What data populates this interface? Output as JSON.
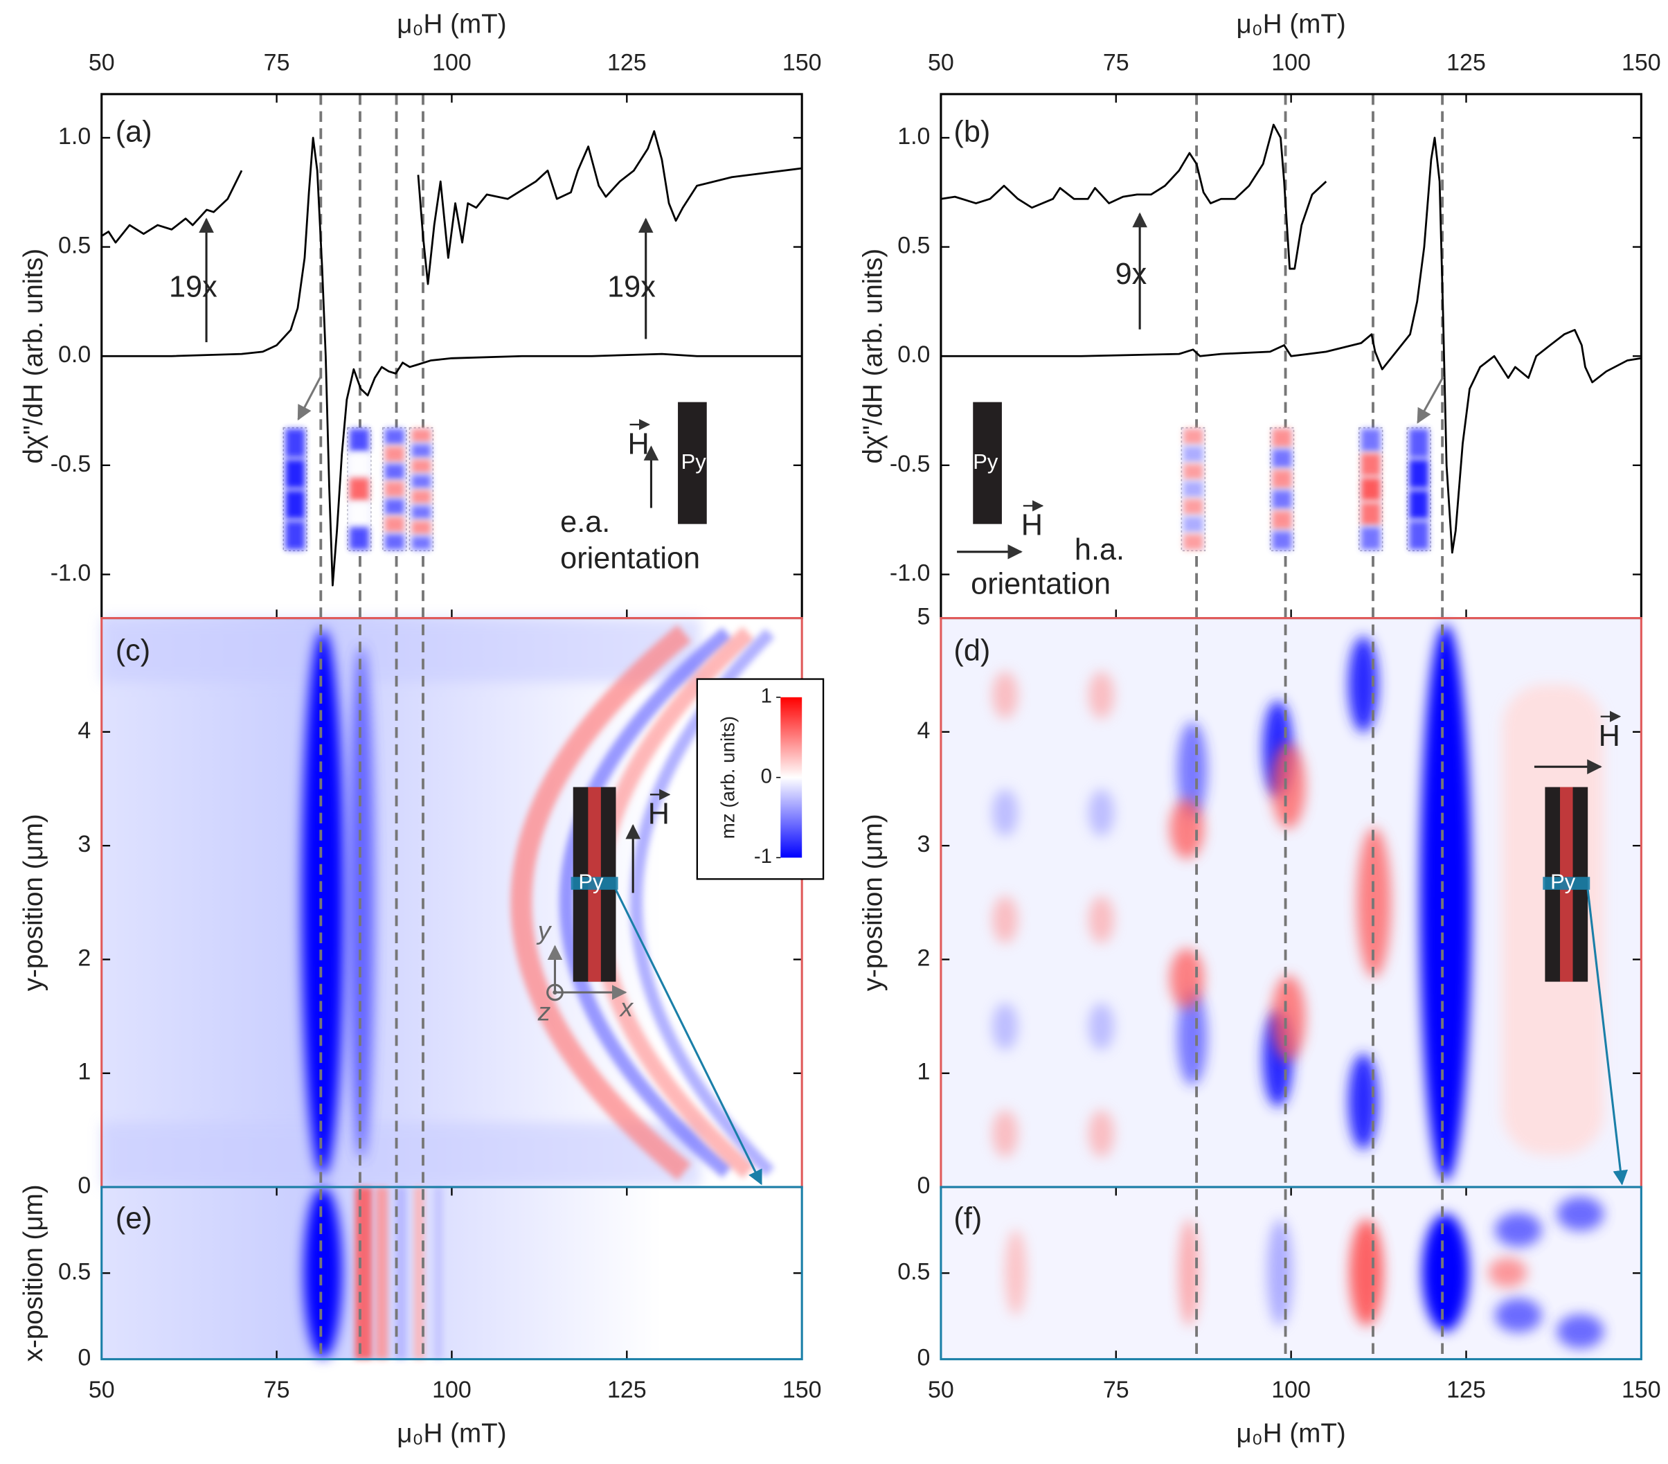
{
  "chart_data": [
    {
      "type": "line",
      "xlabel": "μ₀H (mT)",
      "ylabel": "dχ\"/dH (arb. units)",
      "xlim": [
        50,
        150
      ],
      "xticks": [
        50,
        75,
        100,
        125,
        150
      ],
      "ylim": [
        -1.2,
        1.2
      ],
      "yticks": [
        {
          "value": -1,
          "label": "-1.0"
        },
        -0.5,
        {
          "value": 0,
          "label": "0.0"
        },
        0.5,
        {
          "value": 1,
          "label": "1.0"
        }
      ],
      "markers": [
        81.3,
        86.9,
        92.1,
        95.9
      ],
      "annotations": [
        "(a)",
        "19x",
        "19x",
        "Py",
        "H",
        "e.a.",
        "orientation"
      ],
      "series": [
        {
          "color": "#000000",
          "x": [
            50,
            60,
            70,
            73,
            75,
            77,
            78,
            79,
            79.6,
            80.2,
            80.8,
            81.5,
            82,
            82.5,
            83,
            83.6,
            84.3,
            85,
            86,
            87,
            88,
            89,
            90,
            91,
            92,
            93,
            94,
            95,
            97,
            100,
            110,
            120,
            130,
            135,
            150
          ],
          "values": [
            0,
            0,
            0.01,
            0.02,
            0.05,
            0.12,
            0.22,
            0.45,
            0.75,
            1.0,
            0.85,
            0.4,
            0,
            -0.6,
            -1.05,
            -0.8,
            -0.45,
            -0.2,
            -0.06,
            -0.15,
            -0.18,
            -0.1,
            -0.05,
            -0.07,
            -0.08,
            -0.03,
            -0.05,
            -0.04,
            -0.02,
            -0.01,
            0,
            0,
            0.01,
            0,
            0
          ]
        },
        {
          "color": "#000000",
          "x": [
            50,
            51,
            52,
            54,
            56,
            58,
            60,
            62,
            63,
            65,
            66,
            68,
            70
          ],
          "values": [
            0.55,
            0.57,
            0.52,
            0.6,
            0.56,
            0.6,
            0.58,
            0.63,
            0.6,
            0.67,
            0.66,
            0.72,
            0.85
          ]
        },
        {
          "color": "#000000",
          "x": [
            95.2,
            95.9,
            96.6,
            97.5,
            98.4,
            99.5,
            100.5,
            101.5,
            102.3,
            103.5,
            105,
            108,
            110,
            112,
            113.7,
            115,
            117,
            118,
            119.5,
            121,
            122,
            124,
            126,
            128,
            128.9,
            130,
            131,
            132,
            133,
            135,
            140,
            145,
            150
          ],
          "values": [
            0.83,
            0.55,
            0.33,
            0.6,
            0.8,
            0.45,
            0.7,
            0.52,
            0.7,
            0.68,
            0.74,
            0.72,
            0.76,
            0.8,
            0.85,
            0.72,
            0.75,
            0.85,
            0.96,
            0.78,
            0.73,
            0.8,
            0.85,
            0.95,
            1.03,
            0.9,
            0.7,
            0.62,
            0.68,
            0.78,
            0.82,
            0.84,
            0.86
          ]
        }
      ]
    },
    {
      "type": "line",
      "xlabel": "μ₀H (mT)",
      "ylabel": "dχ\"/dH (arb. units)",
      "xlim": [
        50,
        150
      ],
      "xticks": [
        50,
        75,
        100,
        125,
        150
      ],
      "ylim": [
        -1.2,
        1.2
      ],
      "yticks": [
        {
          "value": -1,
          "label": "-1.0"
        },
        -0.5,
        {
          "value": 0,
          "label": "0.0"
        },
        0.5,
        {
          "value": 1,
          "label": "1.0"
        }
      ],
      "markers": [
        86.5,
        99.2,
        111.7,
        121.6
      ],
      "annotations": [
        "(b)",
        "9x",
        "Py",
        "H",
        "h.a.",
        "orientation"
      ],
      "series": [
        {
          "color": "#000000",
          "x": [
            50,
            70,
            84,
            86,
            87,
            90,
            97,
            99,
            100,
            105,
            110,
            111.5,
            112,
            113,
            115,
            117,
            118,
            119,
            120,
            120.5,
            121.2,
            121.7,
            122.2,
            123,
            123.5,
            124.5,
            125.5,
            127,
            129,
            131,
            132,
            133.9,
            135,
            137,
            139,
            140.5,
            141.5,
            142,
            143,
            145,
            148,
            150
          ],
          "values": [
            0,
            0,
            0.01,
            0.03,
            0,
            0.01,
            0.02,
            0.05,
            0,
            0.02,
            0.06,
            0.1,
            0.02,
            -0.06,
            0.02,
            0.1,
            0.25,
            0.5,
            0.9,
            1.0,
            0.8,
            0.2,
            -0.5,
            -0.9,
            -0.8,
            -0.4,
            -0.15,
            -0.05,
            0,
            -0.1,
            -0.05,
            -0.1,
            0,
            0.05,
            0.1,
            0.12,
            0.05,
            -0.05,
            -0.12,
            -0.07,
            -0.02,
            -0.01
          ]
        },
        {
          "color": "#000000",
          "x": [
            50,
            52,
            55,
            57,
            59,
            61,
            63,
            66,
            67,
            69,
            71,
            72,
            74,
            76,
            78,
            80,
            82,
            84,
            85.5,
            86.5,
            87.5,
            88.5,
            90,
            92,
            94,
            96,
            97.5,
            98.5,
            99,
            99.8,
            100.5,
            101.5,
            103,
            105
          ],
          "values": [
            0.72,
            0.73,
            0.7,
            0.72,
            0.78,
            0.72,
            0.68,
            0.72,
            0.77,
            0.72,
            0.72,
            0.77,
            0.7,
            0.73,
            0.74,
            0.74,
            0.78,
            0.85,
            0.93,
            0.88,
            0.75,
            0.7,
            0.72,
            0.72,
            0.78,
            0.88,
            1.06,
            1.0,
            0.8,
            0.4,
            0.4,
            0.6,
            0.74,
            0.8
          ]
        }
      ]
    },
    {
      "type": "heatmap",
      "ylabel": "y-position (μm)",
      "xlim": [
        50,
        150
      ],
      "ylim": [
        0,
        5
      ],
      "yticks": [
        0,
        1,
        2,
        3,
        4
      ],
      "annotations": [
        "(c)",
        "Py",
        "H",
        "y",
        "z",
        "x"
      ],
      "colorbar": {
        "label": "mz (arb. units)",
        "lim": [
          -1,
          1
        ],
        "ticks": [
          -1,
          0,
          1
        ]
      }
    },
    {
      "type": "heatmap",
      "ylabel": "y-position (μm)",
      "xlim": [
        50,
        150
      ],
      "ylim": [
        0,
        5
      ],
      "yticks": [
        0,
        1,
        2,
        3,
        4,
        5
      ],
      "annotations": [
        "(d)",
        "Py",
        "H"
      ]
    },
    {
      "type": "heatmap",
      "ylabel": "x-position (μm)",
      "xlabel": "μ₀H (mT)",
      "xlim": [
        50,
        150
      ],
      "xticks": [
        50,
        75,
        100,
        125,
        150
      ],
      "ylim": [
        0,
        1
      ],
      "yticks": [
        0,
        0.5
      ],
      "annotations": [
        "(e)"
      ]
    },
    {
      "type": "heatmap",
      "xlabel": "μ₀H (mT)",
      "xlim": [
        50,
        150
      ],
      "xticks": [
        50,
        75,
        100,
        125,
        150
      ],
      "ylim": [
        0,
        1
      ],
      "yticks": [
        0,
        0.5
      ],
      "annotations": [
        "(f)"
      ]
    }
  ]
}
